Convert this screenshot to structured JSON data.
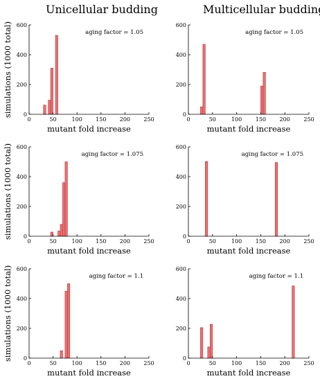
{
  "column_titles": [
    "Unicellular budding",
    "Multicellular budding"
  ],
  "chart_data": [
    {
      "type": "bar",
      "column": "Unicellular budding",
      "annotation": "aging factor = 1.05",
      "xlabel": "mutant fold increase",
      "ylabel": "simulations (1000 total)",
      "xlim": [
        0,
        250
      ],
      "ylim": [
        0,
        600
      ],
      "xticks": [
        0,
        50,
        100,
        150,
        200,
        250
      ],
      "yticks": [
        0,
        200,
        400,
        600
      ],
      "bin_width": 5,
      "bins": [
        {
          "x": 30,
          "value": 62
        },
        {
          "x": 40,
          "value": 95
        },
        {
          "x": 45,
          "value": 310
        },
        {
          "x": 55,
          "value": 530
        }
      ]
    },
    {
      "type": "bar",
      "column": "Multicellular budding",
      "annotation": "aging factor = 1.05",
      "xlabel": "mutant fold increase",
      "ylabel": "",
      "xlim": [
        0,
        250
      ],
      "ylim": [
        0,
        600
      ],
      "xticks": [
        0,
        50,
        100,
        150,
        200,
        250
      ],
      "yticks": [
        0,
        200,
        400,
        600
      ],
      "bin_width": 5,
      "bins": [
        {
          "x": 25,
          "value": 50
        },
        {
          "x": 30,
          "value": 470
        },
        {
          "x": 150,
          "value": 190
        },
        {
          "x": 155,
          "value": 282
        }
      ]
    },
    {
      "type": "bar",
      "column": "Unicellular budding",
      "annotation": "aging factor = 1.075",
      "xlabel": "mutant fold increase",
      "ylabel": "simulations (1000 total)",
      "xlim": [
        0,
        250
      ],
      "ylim": [
        0,
        600
      ],
      "xticks": [
        0,
        50,
        100,
        150,
        200,
        250
      ],
      "yticks": [
        0,
        200,
        400,
        600
      ],
      "bin_width": 5,
      "bins": [
        {
          "x": 45,
          "value": 28
        },
        {
          "x": 60,
          "value": 35
        },
        {
          "x": 65,
          "value": 80
        },
        {
          "x": 70,
          "value": 360
        },
        {
          "x": 75,
          "value": 500
        }
      ]
    },
    {
      "type": "bar",
      "column": "Multicellular budding",
      "annotation": "aging factor = 1.075",
      "xlabel": "mutant fold increase",
      "ylabel": "",
      "xlim": [
        0,
        250
      ],
      "ylim": [
        0,
        600
      ],
      "xticks": [
        0,
        50,
        100,
        150,
        200,
        250
      ],
      "yticks": [
        0,
        200,
        400,
        600
      ],
      "bin_width": 5,
      "bins": [
        {
          "x": 35,
          "value": 502
        },
        {
          "x": 180,
          "value": 495
        }
      ]
    },
    {
      "type": "bar",
      "column": "Unicellular budding",
      "annotation": "aging factor = 1.1",
      "xlabel": "mutant fold increase",
      "ylabel": "simulations (1000 total)",
      "xlim": [
        0,
        250
      ],
      "ylim": [
        0,
        600
      ],
      "xticks": [
        0,
        50,
        100,
        150,
        200,
        250
      ],
      "yticks": [
        0,
        200,
        400,
        600
      ],
      "bin_width": 5,
      "bins": [
        {
          "x": 65,
          "value": 50
        },
        {
          "x": 75,
          "value": 450
        },
        {
          "x": 80,
          "value": 500
        }
      ]
    },
    {
      "type": "bar",
      "column": "Multicellular budding",
      "annotation": "aging factor = 1.1",
      "xlabel": "mutant fold increase",
      "ylabel": "",
      "xlim": [
        0,
        250
      ],
      "ylim": [
        0,
        600
      ],
      "xticks": [
        0,
        50,
        100,
        150,
        200,
        250
      ],
      "yticks": [
        0,
        200,
        400,
        600
      ],
      "bin_width": 5,
      "bins": [
        {
          "x": 25,
          "value": 205
        },
        {
          "x": 40,
          "value": 75
        },
        {
          "x": 45,
          "value": 228
        },
        {
          "x": 215,
          "value": 485
        }
      ]
    }
  ]
}
